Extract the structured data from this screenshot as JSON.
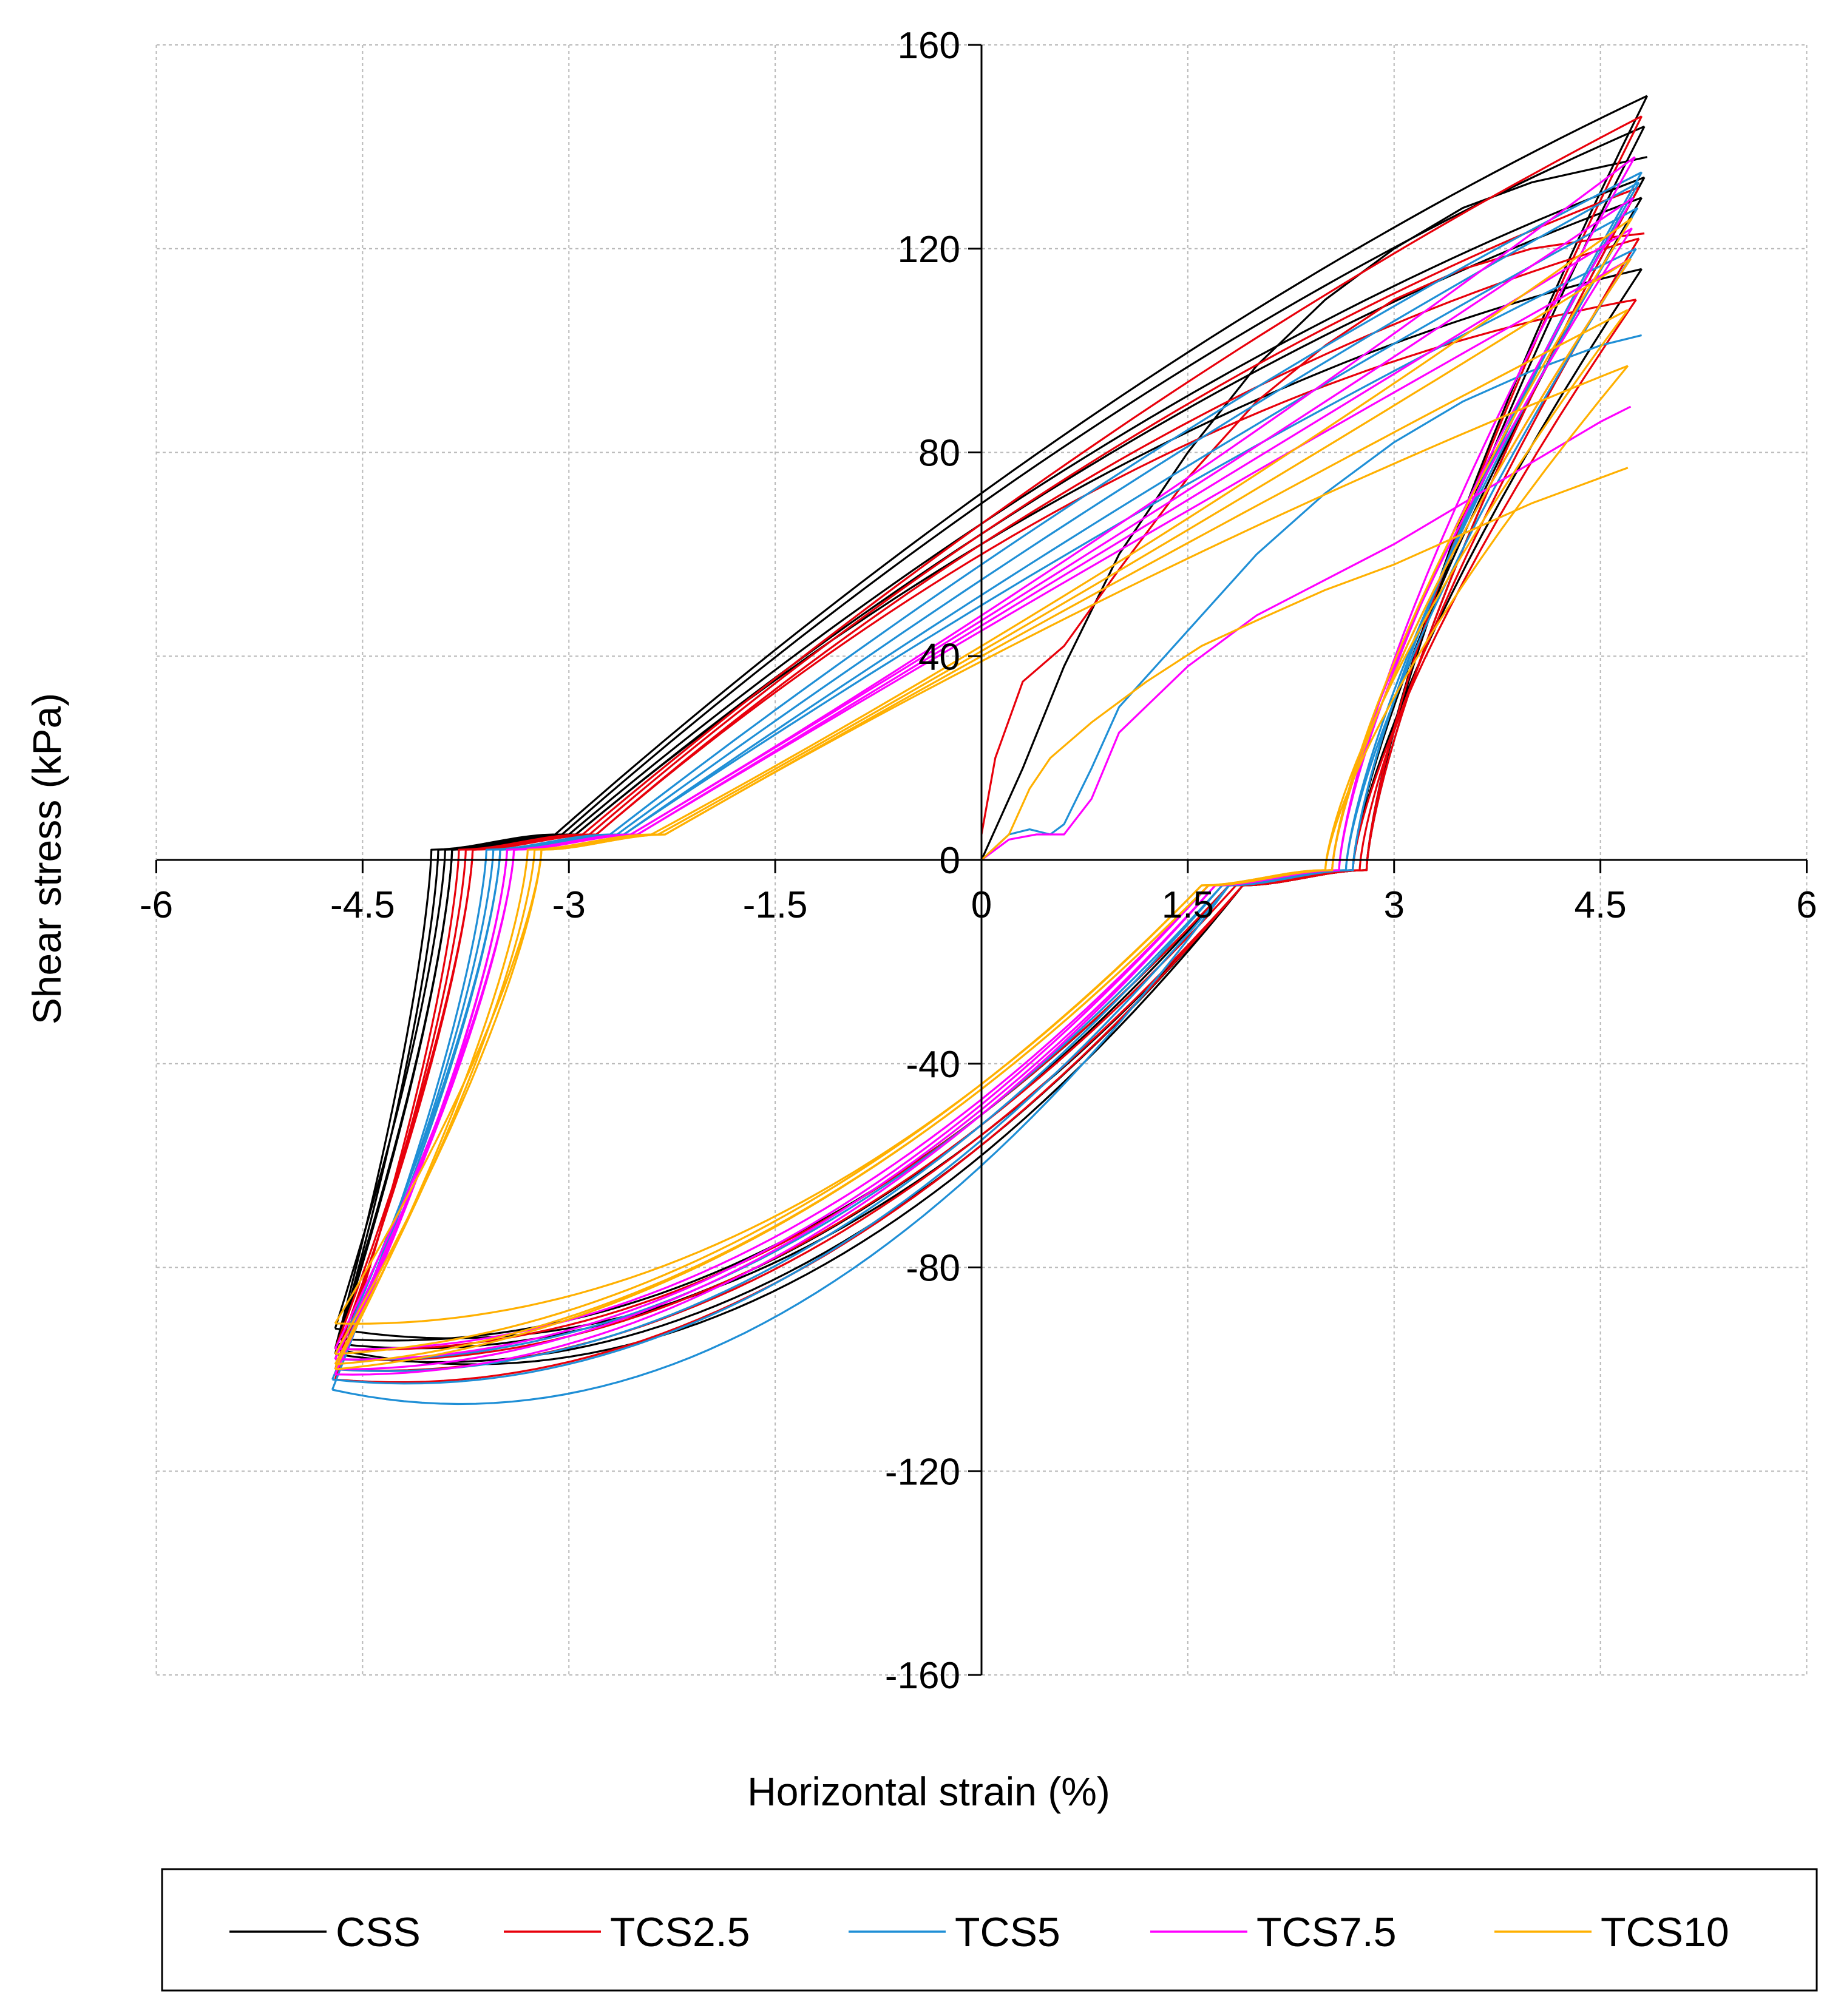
{
  "chart_data": {
    "type": "line",
    "title": "",
    "xlabel": "Horizontal strain (%)",
    "ylabel": "Shear stress (kPa)",
    "xlim": [
      -6,
      6
    ],
    "ylim": [
      -160,
      160
    ],
    "xticks": [
      -6,
      -4.5,
      -3,
      -1.5,
      0,
      1.5,
      3,
      4.5,
      6
    ],
    "xtick_labels": [
      "-6",
      "-4.5",
      "-3",
      "-1.5",
      "0",
      "1.5",
      "3",
      "4.5",
      "6"
    ],
    "yticks": [
      -160,
      -120,
      -80,
      -40,
      0,
      40,
      80,
      120,
      160
    ],
    "ytick_labels": [
      "-160",
      "-120",
      "-80",
      "-40",
      "0",
      "40",
      "80",
      "120",
      "160"
    ],
    "grid": true,
    "legend_position": "bottom",
    "series": [
      {
        "name": "CSS",
        "color": "#000000",
        "initial_loading": {
          "x": [
            0,
            0.3,
            0.6,
            1.0,
            1.5,
            2.0,
            2.5,
            3.0,
            3.5,
            4.0,
            4.5,
            4.84
          ],
          "y": [
            0,
            18,
            38,
            60,
            80,
            97,
            110,
            120,
            128,
            133,
            136,
            138
          ]
        },
        "cycles": [
          {
            "x_max": 4.84,
            "y_max": 150,
            "x_min": -4.7,
            "y_min": -96,
            "y_cross_pos": 72,
            "y_cross_neg": -58,
            "x_rev": 2.8,
            "x_zero_neg": -4.0
          },
          {
            "x_max": 4.82,
            "y_max": 144,
            "x_min": -4.7,
            "y_min": -97,
            "y_cross_pos": 70,
            "y_cross_neg": -56,
            "x_rev": 2.8,
            "x_zero_neg": -3.95
          },
          {
            "x_max": 4.82,
            "y_max": 134,
            "x_min": -4.7,
            "y_min": -92,
            "y_cross_pos": 66,
            "y_cross_neg": -54,
            "x_rev": 2.8,
            "x_zero_neg": -3.9
          },
          {
            "x_max": 4.8,
            "y_max": 130,
            "x_min": -4.68,
            "y_min": -95,
            "y_cross_pos": 64,
            "y_cross_neg": -52,
            "x_rev": 2.7,
            "x_zero_neg": -3.85
          },
          {
            "x_max": 4.8,
            "y_max": 116,
            "x_min": -4.68,
            "y_min": -94,
            "y_cross_pos": 62,
            "y_cross_neg": -50,
            "x_rev": 2.7,
            "x_zero_neg": -3.85
          }
        ]
      },
      {
        "name": "TCS2.5",
        "color": "#e8000b",
        "initial_loading": {
          "x": [
            0,
            0.1,
            0.3,
            0.6,
            1.0,
            1.5,
            2.0,
            2.5,
            3.0,
            3.5,
            4.0,
            4.5,
            4.82
          ],
          "y": [
            5,
            20,
            35,
            42,
            57,
            75,
            90,
            101,
            110,
            116,
            120,
            122,
            123
          ]
        },
        "cycles": [
          {
            "x_max": 4.8,
            "y_max": 146,
            "x_min": -4.7,
            "y_min": -102,
            "y_cross_pos": 66,
            "y_cross_neg": -56,
            "x_rev": 2.8,
            "x_zero_neg": -3.8
          },
          {
            "x_max": 4.78,
            "y_max": 132,
            "x_min": -4.7,
            "y_min": -100,
            "y_cross_pos": 64,
            "y_cross_neg": -54,
            "x_rev": 2.8,
            "x_zero_neg": -3.75
          },
          {
            "x_max": 4.78,
            "y_max": 122,
            "x_min": -4.7,
            "y_min": -98,
            "y_cross_pos": 62,
            "y_cross_neg": -52,
            "x_rev": 2.75,
            "x_zero_neg": -3.7
          },
          {
            "x_max": 4.76,
            "y_max": 110,
            "x_min": -4.7,
            "y_min": -96,
            "y_cross_pos": 60,
            "y_cross_neg": -50,
            "x_rev": 2.7,
            "x_zero_neg": -3.7
          }
        ]
      },
      {
        "name": "TCS5",
        "color": "#1f8fd6",
        "initial_loading": {
          "x": [
            0,
            0.2,
            0.35,
            0.5,
            0.6,
            0.8,
            1.0,
            1.5,
            2.0,
            2.5,
            3.0,
            3.5,
            4.0,
            4.5,
            4.8
          ],
          "y": [
            0,
            5,
            6,
            5,
            7,
            18,
            30,
            45,
            60,
            72,
            82,
            90,
            96,
            101,
            103
          ]
        },
        "cycles": [
          {
            "x_max": 4.8,
            "y_max": 135,
            "x_min": -4.72,
            "y_min": -104,
            "y_cross_pos": 58,
            "y_cross_neg": -60,
            "x_rev": 2.7,
            "x_zero_neg": -3.6
          },
          {
            "x_max": 4.78,
            "y_max": 133,
            "x_min": -4.72,
            "y_min": -102,
            "y_cross_pos": 55,
            "y_cross_neg": -55,
            "x_rev": 2.7,
            "x_zero_neg": -3.55
          },
          {
            "x_max": 4.77,
            "y_max": 128,
            "x_min": -4.7,
            "y_min": -100,
            "y_cross_pos": 52,
            "y_cross_neg": -52,
            "x_rev": 2.65,
            "x_zero_neg": -3.5
          },
          {
            "x_max": 4.76,
            "y_max": 120,
            "x_min": -4.7,
            "y_min": -98,
            "y_cross_pos": 50,
            "y_cross_neg": -50,
            "x_rev": 2.65,
            "x_zero_neg": -3.5
          }
        ]
      },
      {
        "name": "TCS7.5",
        "color": "#ff00ff",
        "initial_loading": {
          "x": [
            0,
            0.2,
            0.4,
            0.6,
            0.8,
            1.0,
            1.5,
            2.0,
            2.5,
            3.0,
            3.5,
            4.0,
            4.5,
            4.72
          ],
          "y": [
            0,
            4,
            5,
            5,
            12,
            25,
            38,
            48,
            55,
            62,
            70,
            78,
            86,
            89
          ]
        },
        "cycles": [
          {
            "x_max": 4.75,
            "y_max": 138,
            "x_min": -4.7,
            "y_min": -101,
            "y_cross_pos": 48,
            "y_cross_neg": -50,
            "x_rev": 2.6,
            "x_zero_neg": -3.45
          },
          {
            "x_max": 4.74,
            "y_max": 130,
            "x_min": -4.7,
            "y_min": -100,
            "y_cross_pos": 47,
            "y_cross_neg": -49,
            "x_rev": 2.6,
            "x_zero_neg": -3.45
          },
          {
            "x_max": 4.73,
            "y_max": 124,
            "x_min": -4.7,
            "y_min": -98,
            "y_cross_pos": 46,
            "y_cross_neg": -48,
            "x_rev": 2.55,
            "x_zero_neg": -3.4
          },
          {
            "x_max": 4.72,
            "y_max": 118,
            "x_min": -4.7,
            "y_min": -96,
            "y_cross_pos": 45,
            "y_cross_neg": -47,
            "x_rev": 2.55,
            "x_zero_neg": -3.4
          }
        ]
      },
      {
        "name": "TCS10",
        "color": "#ffb000",
        "initial_loading": {
          "x": [
            0,
            0.2,
            0.35,
            0.5,
            0.8,
            1.2,
            1.6,
            2.0,
            2.5,
            3.0,
            3.5,
            4.0,
            4.5,
            4.7
          ],
          "y": [
            0,
            5,
            14,
            20,
            27,
            35,
            42,
            47,
            53,
            58,
            64,
            70,
            75,
            77
          ]
        },
        "cycles": [
          {
            "x_max": 4.73,
            "y_max": 126,
            "x_min": -4.7,
            "y_min": -100,
            "y_cross_pos": 42,
            "y_cross_neg": -45,
            "x_rev": 2.55,
            "x_zero_neg": -3.3
          },
          {
            "x_max": 4.72,
            "y_max": 118,
            "x_min": -4.7,
            "y_min": -99,
            "y_cross_pos": 41,
            "y_cross_neg": -45,
            "x_rev": 2.55,
            "x_zero_neg": -3.25
          },
          {
            "x_max": 4.7,
            "y_max": 108,
            "x_min": -4.7,
            "y_min": -97,
            "y_cross_pos": 40,
            "y_cross_neg": -44,
            "x_rev": 2.5,
            "x_zero_neg": -3.2
          },
          {
            "x_max": 4.7,
            "y_max": 97,
            "x_min": -4.7,
            "y_min": -91,
            "y_cross_pos": 39,
            "y_cross_neg": -44,
            "x_rev": 2.5,
            "x_zero_neg": -3.2
          }
        ]
      }
    ]
  }
}
